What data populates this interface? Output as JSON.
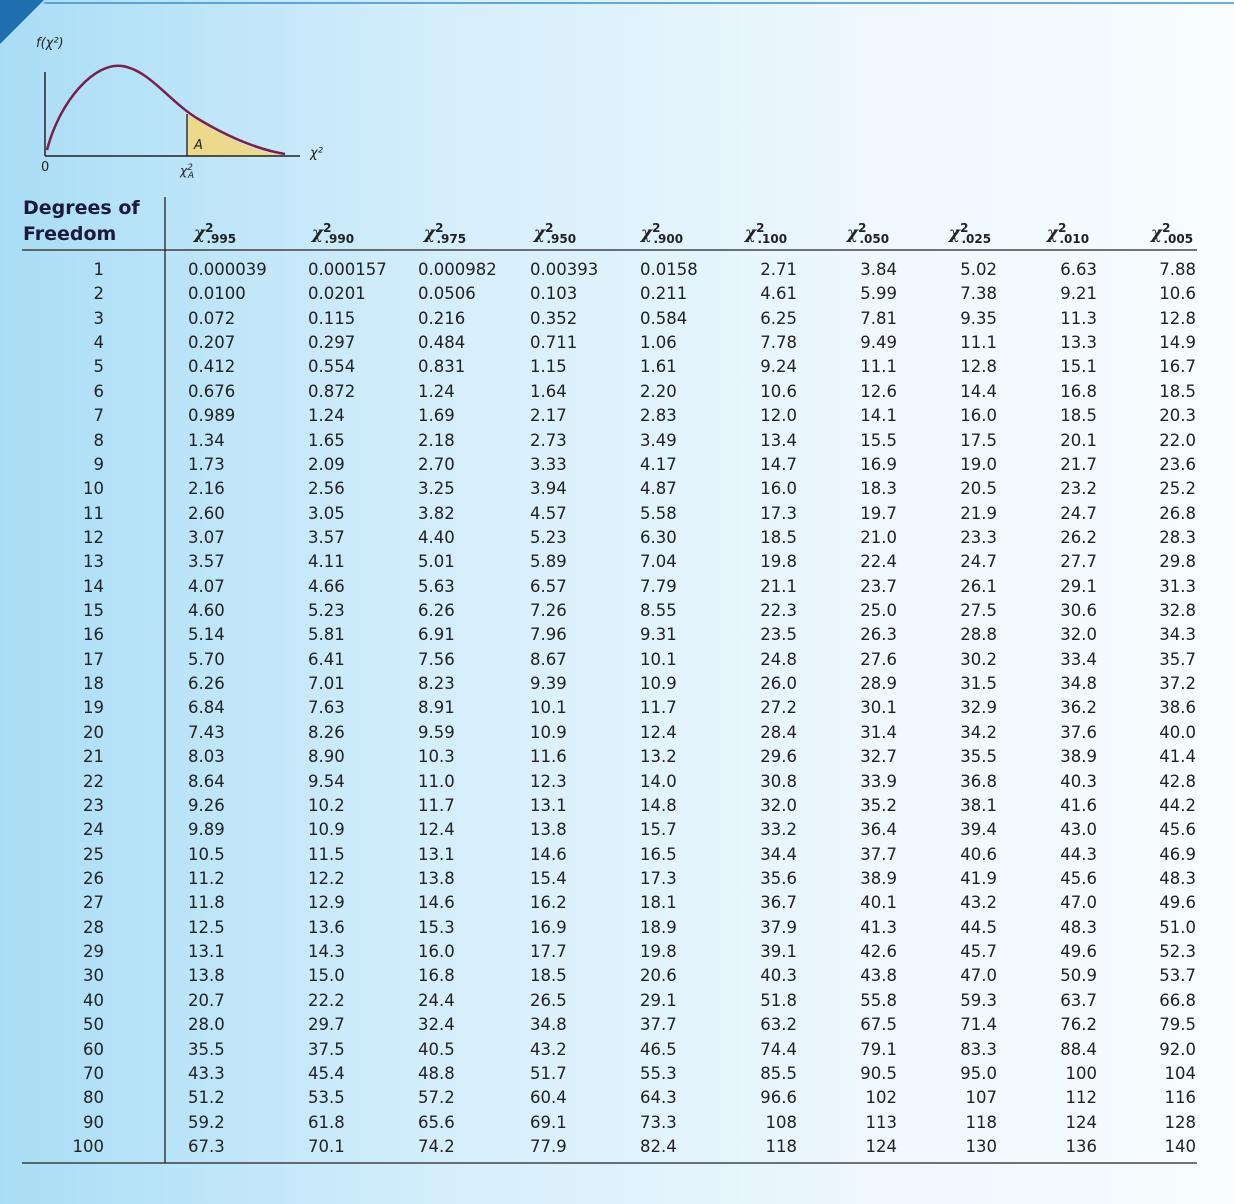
{
  "diagram": {
    "y_label": "f(χ²)",
    "x_label": "χ²",
    "origin": "0",
    "area_label": "A",
    "critical_label": {
      "symbol": "χ",
      "sup": "2",
      "sub": "A"
    }
  },
  "table": {
    "header": {
      "df": "Degrees of Freedom",
      "columns": [
        {
          "symbol": "χ",
          "sup": "2",
          "sub": ".995"
        },
        {
          "symbol": "χ",
          "sup": "2",
          "sub": ".990"
        },
        {
          "symbol": "χ",
          "sup": "2",
          "sub": ".975"
        },
        {
          "symbol": "χ",
          "sup": "2",
          "sub": ".950"
        },
        {
          "symbol": "χ",
          "sup": "2",
          "sub": ".900"
        },
        {
          "symbol": "χ",
          "sup": "2",
          "sub": ".100"
        },
        {
          "symbol": "χ",
          "sup": "2",
          "sub": ".050"
        },
        {
          "symbol": "χ",
          "sup": "2",
          "sub": ".025"
        },
        {
          "symbol": "χ",
          "sup": "2",
          "sub": ".010"
        },
        {
          "symbol": "χ",
          "sup": "2",
          "sub": ".005"
        }
      ]
    },
    "rows": [
      [
        "1",
        "0.000039",
        "0.000157",
        "0.000982",
        "0.00393",
        "0.0158",
        "2.71",
        "3.84",
        "5.02",
        "6.63",
        "7.88"
      ],
      [
        "2",
        "0.0100",
        "0.0201",
        "0.0506",
        "0.103",
        "0.211",
        "4.61",
        "5.99",
        "7.38",
        "9.21",
        "10.6"
      ],
      [
        "3",
        "0.072",
        "0.115",
        "0.216",
        "0.352",
        "0.584",
        "6.25",
        "7.81",
        "9.35",
        "11.3",
        "12.8"
      ],
      [
        "4",
        "0.207",
        "0.297",
        "0.484",
        "0.711",
        "1.06",
        "7.78",
        "9.49",
        "11.1",
        "13.3",
        "14.9"
      ],
      [
        "5",
        "0.412",
        "0.554",
        "0.831",
        "1.15",
        "1.61",
        "9.24",
        "11.1",
        "12.8",
        "15.1",
        "16.7"
      ],
      [
        "6",
        "0.676",
        "0.872",
        "1.24",
        "1.64",
        "2.20",
        "10.6",
        "12.6",
        "14.4",
        "16.8",
        "18.5"
      ],
      [
        "7",
        "0.989",
        "1.24",
        "1.69",
        "2.17",
        "2.83",
        "12.0",
        "14.1",
        "16.0",
        "18.5",
        "20.3"
      ],
      [
        "8",
        "1.34",
        "1.65",
        "2.18",
        "2.73",
        "3.49",
        "13.4",
        "15.5",
        "17.5",
        "20.1",
        "22.0"
      ],
      [
        "9",
        "1.73",
        "2.09",
        "2.70",
        "3.33",
        "4.17",
        "14.7",
        "16.9",
        "19.0",
        "21.7",
        "23.6"
      ],
      [
        "10",
        "2.16",
        "2.56",
        "3.25",
        "3.94",
        "4.87",
        "16.0",
        "18.3",
        "20.5",
        "23.2",
        "25.2"
      ],
      [
        "11",
        "2.60",
        "3.05",
        "3.82",
        "4.57",
        "5.58",
        "17.3",
        "19.7",
        "21.9",
        "24.7",
        "26.8"
      ],
      [
        "12",
        "3.07",
        "3.57",
        "4.40",
        "5.23",
        "6.30",
        "18.5",
        "21.0",
        "23.3",
        "26.2",
        "28.3"
      ],
      [
        "13",
        "3.57",
        "4.11",
        "5.01",
        "5.89",
        "7.04",
        "19.8",
        "22.4",
        "24.7",
        "27.7",
        "29.8"
      ],
      [
        "14",
        "4.07",
        "4.66",
        "5.63",
        "6.57",
        "7.79",
        "21.1",
        "23.7",
        "26.1",
        "29.1",
        "31.3"
      ],
      [
        "15",
        "4.60",
        "5.23",
        "6.26",
        "7.26",
        "8.55",
        "22.3",
        "25.0",
        "27.5",
        "30.6",
        "32.8"
      ],
      [
        "16",
        "5.14",
        "5.81",
        "6.91",
        "7.96",
        "9.31",
        "23.5",
        "26.3",
        "28.8",
        "32.0",
        "34.3"
      ],
      [
        "17",
        "5.70",
        "6.41",
        "7.56",
        "8.67",
        "10.1",
        "24.8",
        "27.6",
        "30.2",
        "33.4",
        "35.7"
      ],
      [
        "18",
        "6.26",
        "7.01",
        "8.23",
        "9.39",
        "10.9",
        "26.0",
        "28.9",
        "31.5",
        "34.8",
        "37.2"
      ],
      [
        "19",
        "6.84",
        "7.63",
        "8.91",
        "10.1",
        "11.7",
        "27.2",
        "30.1",
        "32.9",
        "36.2",
        "38.6"
      ],
      [
        "20",
        "7.43",
        "8.26",
        "9.59",
        "10.9",
        "12.4",
        "28.4",
        "31.4",
        "34.2",
        "37.6",
        "40.0"
      ],
      [
        "21",
        "8.03",
        "8.90",
        "10.3",
        "11.6",
        "13.2",
        "29.6",
        "32.7",
        "35.5",
        "38.9",
        "41.4"
      ],
      [
        "22",
        "8.64",
        "9.54",
        "11.0",
        "12.3",
        "14.0",
        "30.8",
        "33.9",
        "36.8",
        "40.3",
        "42.8"
      ],
      [
        "23",
        "9.26",
        "10.2",
        "11.7",
        "13.1",
        "14.8",
        "32.0",
        "35.2",
        "38.1",
        "41.6",
        "44.2"
      ],
      [
        "24",
        "9.89",
        "10.9",
        "12.4",
        "13.8",
        "15.7",
        "33.2",
        "36.4",
        "39.4",
        "43.0",
        "45.6"
      ],
      [
        "25",
        "10.5",
        "11.5",
        "13.1",
        "14.6",
        "16.5",
        "34.4",
        "37.7",
        "40.6",
        "44.3",
        "46.9"
      ],
      [
        "26",
        "11.2",
        "12.2",
        "13.8",
        "15.4",
        "17.3",
        "35.6",
        "38.9",
        "41.9",
        "45.6",
        "48.3"
      ],
      [
        "27",
        "11.8",
        "12.9",
        "14.6",
        "16.2",
        "18.1",
        "36.7",
        "40.1",
        "43.2",
        "47.0",
        "49.6"
      ],
      [
        "28",
        "12.5",
        "13.6",
        "15.3",
        "16.9",
        "18.9",
        "37.9",
        "41.3",
        "44.5",
        "48.3",
        "51.0"
      ],
      [
        "29",
        "13.1",
        "14.3",
        "16.0",
        "17.7",
        "19.8",
        "39.1",
        "42.6",
        "45.7",
        "49.6",
        "52.3"
      ],
      [
        "30",
        "13.8",
        "15.0",
        "16.8",
        "18.5",
        "20.6",
        "40.3",
        "43.8",
        "47.0",
        "50.9",
        "53.7"
      ],
      [
        "40",
        "20.7",
        "22.2",
        "24.4",
        "26.5",
        "29.1",
        "51.8",
        "55.8",
        "59.3",
        "63.7",
        "66.8"
      ],
      [
        "50",
        "28.0",
        "29.7",
        "32.4",
        "34.8",
        "37.7",
        "63.2",
        "67.5",
        "71.4",
        "76.2",
        "79.5"
      ],
      [
        "60",
        "35.5",
        "37.5",
        "40.5",
        "43.2",
        "46.5",
        "74.4",
        "79.1",
        "83.3",
        "88.4",
        "92.0"
      ],
      [
        "70",
        "43.3",
        "45.4",
        "48.8",
        "51.7",
        "55.3",
        "85.5",
        "90.5",
        "95.0",
        "100",
        "104"
      ],
      [
        "80",
        "51.2",
        "53.5",
        "57.2",
        "60.4",
        "64.3",
        "96.6",
        "102",
        "107",
        "112",
        "116"
      ],
      [
        "90",
        "59.2",
        "61.8",
        "65.6",
        "69.1",
        "73.3",
        "108",
        "113",
        "118",
        "124",
        "128"
      ],
      [
        "100",
        "67.3",
        "70.1",
        "74.2",
        "77.9",
        "82.4",
        "118",
        "124",
        "130",
        "136",
        "140"
      ]
    ]
  }
}
